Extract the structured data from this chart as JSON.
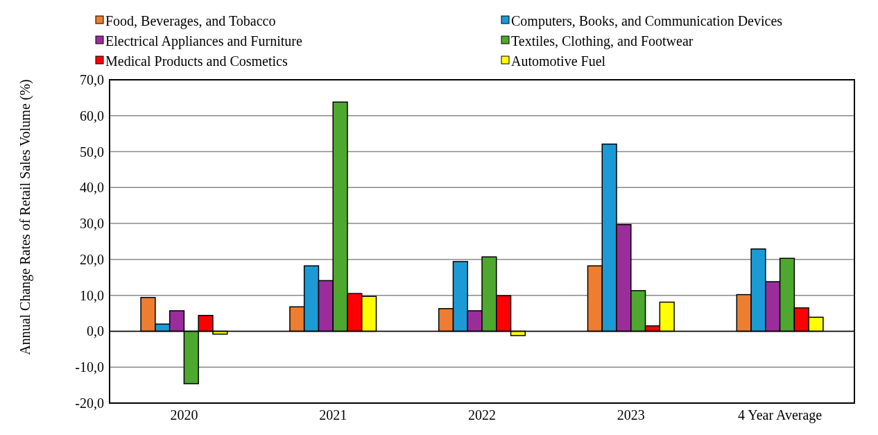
{
  "chart_data": {
    "type": "bar",
    "ylabel": "Annual Change Rates of Retail Sales Volume (%)",
    "categories": [
      "2020",
      "2021",
      "2022",
      "2023",
      "4 Year Average"
    ],
    "series": [
      {
        "name": "Food, Beverages, and Tobacco",
        "color": "#ed7d31",
        "values": [
          9.4,
          6.8,
          6.3,
          18.2,
          10.2
        ]
      },
      {
        "name": "Computers, Books, and Communication Devices",
        "color": "#1b9ad6",
        "values": [
          2.0,
          18.2,
          19.4,
          52.1,
          22.9
        ]
      },
      {
        "name": "Electrical Appliances and Furniture",
        "color": "#9b2d9b",
        "values": [
          5.7,
          14.1,
          5.7,
          29.7,
          13.8
        ]
      },
      {
        "name": "Textiles, Clothing, and Footwear",
        "color": "#4ea72e",
        "values": [
          -14.6,
          63.8,
          20.7,
          11.3,
          20.3
        ]
      },
      {
        "name": "Medical Products and Cosmetics",
        "color": "#ff0000",
        "values": [
          4.4,
          10.5,
          9.9,
          1.5,
          6.5
        ]
      },
      {
        "name": "Automotive Fuel",
        "color": "#ffff00",
        "values": [
          -0.8,
          9.7,
          -1.2,
          8.1,
          3.9
        ]
      }
    ],
    "ylim": [
      -20,
      70
    ],
    "yticks": [
      {
        "value": -20,
        "label": "-20,0"
      },
      {
        "value": -10,
        "label": "-10,0"
      },
      {
        "value": 0,
        "label": "0,0"
      },
      {
        "value": 10,
        "label": "10,0"
      },
      {
        "value": 20,
        "label": "20,0"
      },
      {
        "value": 30,
        "label": "30,0"
      },
      {
        "value": 40,
        "label": "40,0"
      },
      {
        "value": 50,
        "label": "50,0"
      },
      {
        "value": 60,
        "label": "60,0"
      },
      {
        "value": 70,
        "label": "70,0"
      }
    ],
    "grid": "y",
    "legend": "top"
  }
}
